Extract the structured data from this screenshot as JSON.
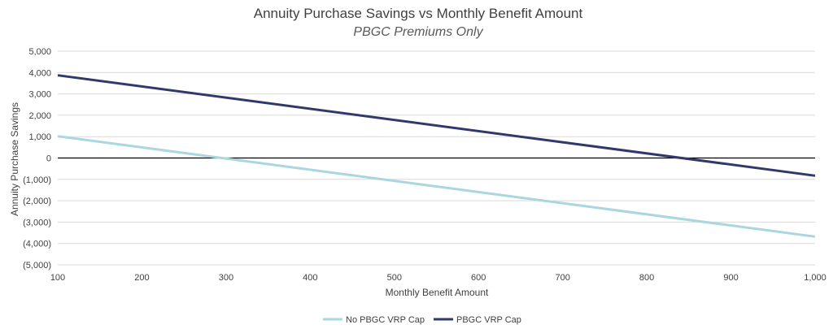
{
  "chart_data": {
    "type": "line",
    "title": "Annuity Purchase Savings vs Monthly Benefit Amount",
    "subtitle": "PBGC Premiums Only",
    "xlabel": "Monthly Benefit Amount",
    "ylabel": "Annuity Purchase Savings",
    "xlim": [
      100,
      1000
    ],
    "ylim": [
      -5000,
      5000
    ],
    "x_ticks": [
      100,
      200,
      300,
      400,
      500,
      600,
      700,
      800,
      900,
      1000
    ],
    "x_tick_labels": [
      "100",
      "200",
      "300",
      "400",
      "500",
      "600",
      "700",
      "800",
      "900",
      "1,000"
    ],
    "y_ticks": [
      5000,
      4000,
      3000,
      2000,
      1000,
      0,
      -1000,
      -2000,
      -3000,
      -4000,
      -5000
    ],
    "y_tick_labels": [
      "5,000",
      "4,000",
      "3,000",
      "2,000",
      "1,000",
      "0",
      "(1,000)",
      "(2,000)",
      "(3,000)",
      "(4,000)",
      "(5,000)"
    ],
    "grid": true,
    "legend_position": "bottom-center",
    "series": [
      {
        "name": "No PBGC VRP Cap",
        "color": "#a9d6df",
        "x": [
          100,
          1000
        ],
        "y": [
          1020,
          -3680
        ]
      },
      {
        "name": "PBGC VRP Cap",
        "color": "#2f3a6b",
        "x": [
          100,
          1000
        ],
        "y": [
          3870,
          -830
        ]
      }
    ],
    "zero_line_color": "#000000",
    "grid_color": "#d9d9d9"
  }
}
